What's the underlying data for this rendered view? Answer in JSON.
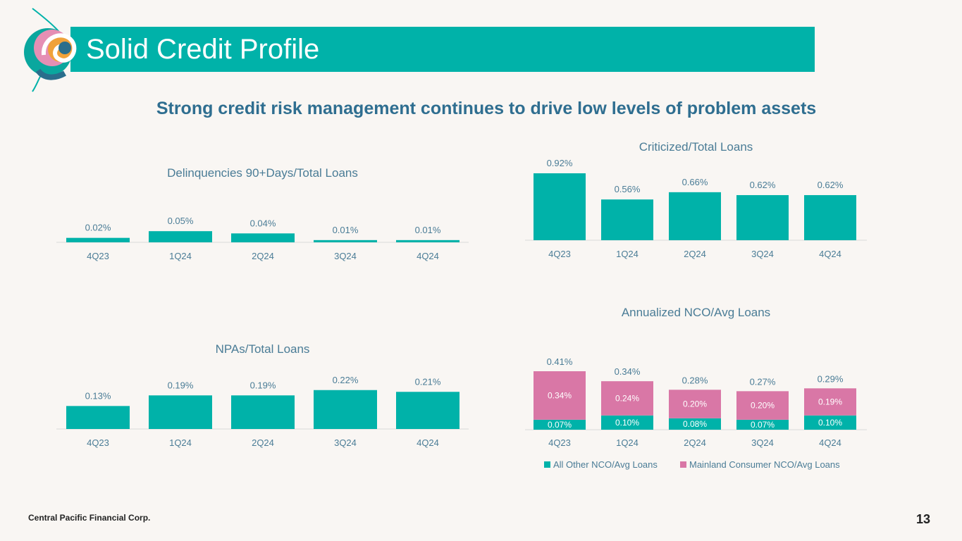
{
  "header": {
    "title": "Solid Credit Profile"
  },
  "subtitle": "Strong credit risk management continues to drive low levels of problem assets",
  "footer": {
    "company": "Central Pacific Financial Corp.",
    "page": "13"
  },
  "colors": {
    "teal": "#00b2a9",
    "pink": "#d977a6",
    "axis": "#d9d9d9",
    "text": "#4a7c96"
  },
  "chart_data": [
    {
      "id": "delinquencies",
      "type": "bar",
      "title": "Delinquencies 90+Days/Total Loans",
      "categories": [
        "4Q23",
        "1Q24",
        "2Q24",
        "3Q24",
        "4Q24"
      ],
      "values": [
        0.02,
        0.05,
        0.04,
        0.01,
        0.01
      ],
      "labels": [
        "0.02%",
        "0.05%",
        "0.04%",
        "0.01%",
        "0.01%"
      ],
      "ylim": [
        0,
        0.6
      ]
    },
    {
      "id": "criticized",
      "type": "bar",
      "title": "Criticized/Total Loans",
      "categories": [
        "4Q23",
        "1Q24",
        "2Q24",
        "3Q24",
        "4Q24"
      ],
      "values": [
        0.92,
        0.56,
        0.66,
        0.62,
        0.62
      ],
      "labels": [
        "0.92%",
        "0.56%",
        "0.66%",
        "0.62%",
        "0.62%"
      ],
      "ylim": [
        0,
        0.92
      ]
    },
    {
      "id": "npas",
      "type": "bar",
      "title": "NPAs/Total Loans",
      "categories": [
        "4Q23",
        "1Q24",
        "2Q24",
        "3Q24",
        "4Q24"
      ],
      "values": [
        0.13,
        0.19,
        0.19,
        0.22,
        0.21
      ],
      "labels": [
        "0.13%",
        "0.19%",
        "0.19%",
        "0.22%",
        "0.21%"
      ],
      "ylim": [
        0,
        0.45
      ]
    },
    {
      "id": "nco",
      "type": "bar",
      "stacked": true,
      "title": "Annualized NCO/Avg Loans",
      "categories": [
        "4Q23",
        "1Q24",
        "2Q24",
        "3Q24",
        "4Q24"
      ],
      "series": [
        {
          "name": "All Other NCO/Avg Loans",
          "values": [
            0.07,
            0.1,
            0.08,
            0.07,
            0.1
          ],
          "labels": [
            "0.07%",
            "0.10%",
            "0.08%",
            "0.07%",
            "0.10%"
          ]
        },
        {
          "name": "Mainland Consumer NCO/Avg Loans",
          "values": [
            0.34,
            0.24,
            0.2,
            0.2,
            0.19
          ],
          "labels": [
            "0.34%",
            "0.24%",
            "0.20%",
            "0.20%",
            "0.19%"
          ]
        }
      ],
      "totals": [
        0.41,
        0.34,
        0.28,
        0.27,
        0.29
      ],
      "total_labels": [
        "0.41%",
        "0.34%",
        "0.28%",
        "0.27%",
        "0.29%"
      ],
      "ylim": [
        0,
        0.41
      ],
      "legend": "bottom"
    }
  ]
}
